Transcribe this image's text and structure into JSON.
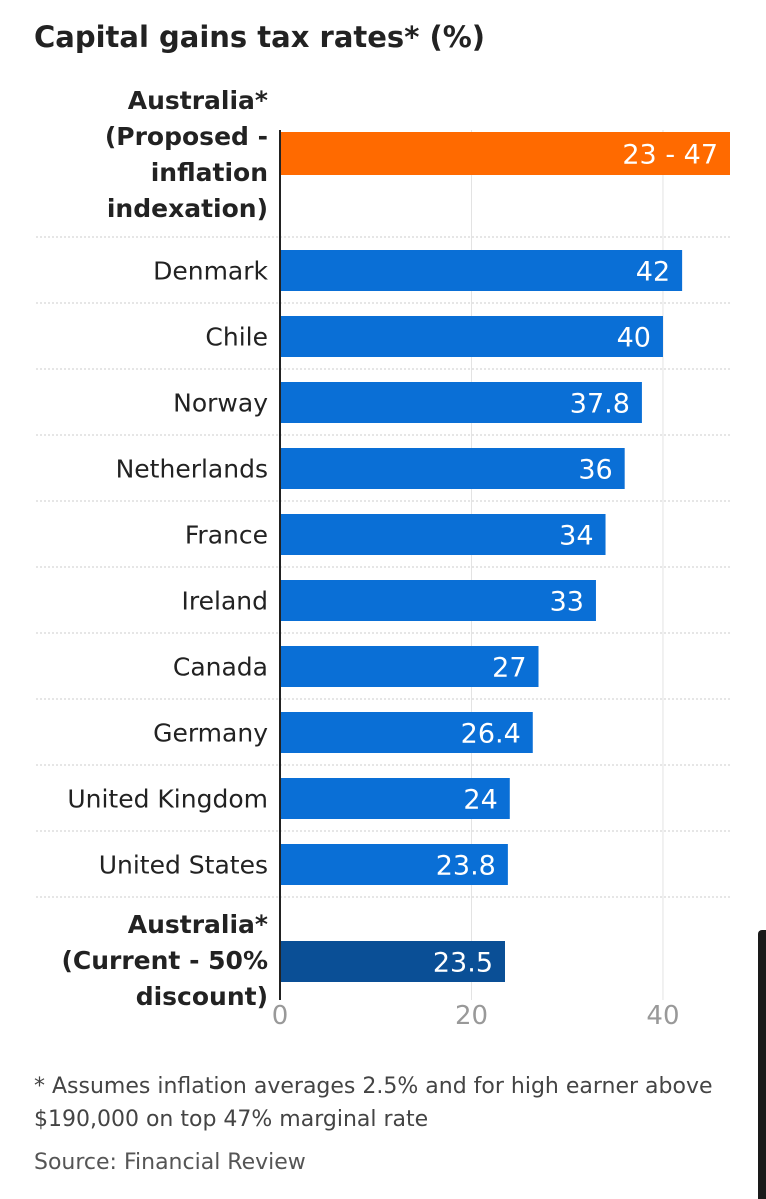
{
  "chart_data": {
    "type": "bar",
    "orientation": "horizontal",
    "title": "Capital gains tax rates* (%)",
    "categories": [
      [
        "Australia*",
        "(Proposed -",
        "inflation",
        "indexation)"
      ],
      [
        "Denmark"
      ],
      [
        "Chile"
      ],
      [
        "Norway"
      ],
      [
        "Netherlands"
      ],
      [
        "France"
      ],
      [
        "Ireland"
      ],
      [
        "Canada"
      ],
      [
        "Germany"
      ],
      [
        "United Kingdom"
      ],
      [
        "United States"
      ],
      [
        "Australia*",
        "(Current - 50%",
        "discount)"
      ]
    ],
    "values": [
      47,
      42,
      40,
      37.8,
      36,
      34,
      33,
      27,
      26.4,
      24,
      23.8,
      23.5
    ],
    "value_labels": [
      "23 -  47",
      "42",
      "40",
      "37.8",
      "36",
      "34",
      "33",
      "27",
      "26.4",
      "24",
      "23.8",
      "23.5"
    ],
    "range_low": 23,
    "bold_categories": [
      0,
      11
    ],
    "bar_colors": [
      "#ff6a00",
      "#0a6fd6",
      "#0a6fd6",
      "#0a6fd6",
      "#0a6fd6",
      "#0a6fd6",
      "#0a6fd6",
      "#0a6fd6",
      "#0a6fd6",
      "#0a6fd6",
      "#0a6fd6",
      "#0a4f96"
    ],
    "xlim": [
      0,
      47
    ],
    "xticks": [
      0,
      20,
      40
    ],
    "grid": true
  },
  "footnote": "* Assumes inflation averages 2.5% and for high earner above $190,000 on top 47% marginal rate",
  "source": "Source: Financial Review"
}
